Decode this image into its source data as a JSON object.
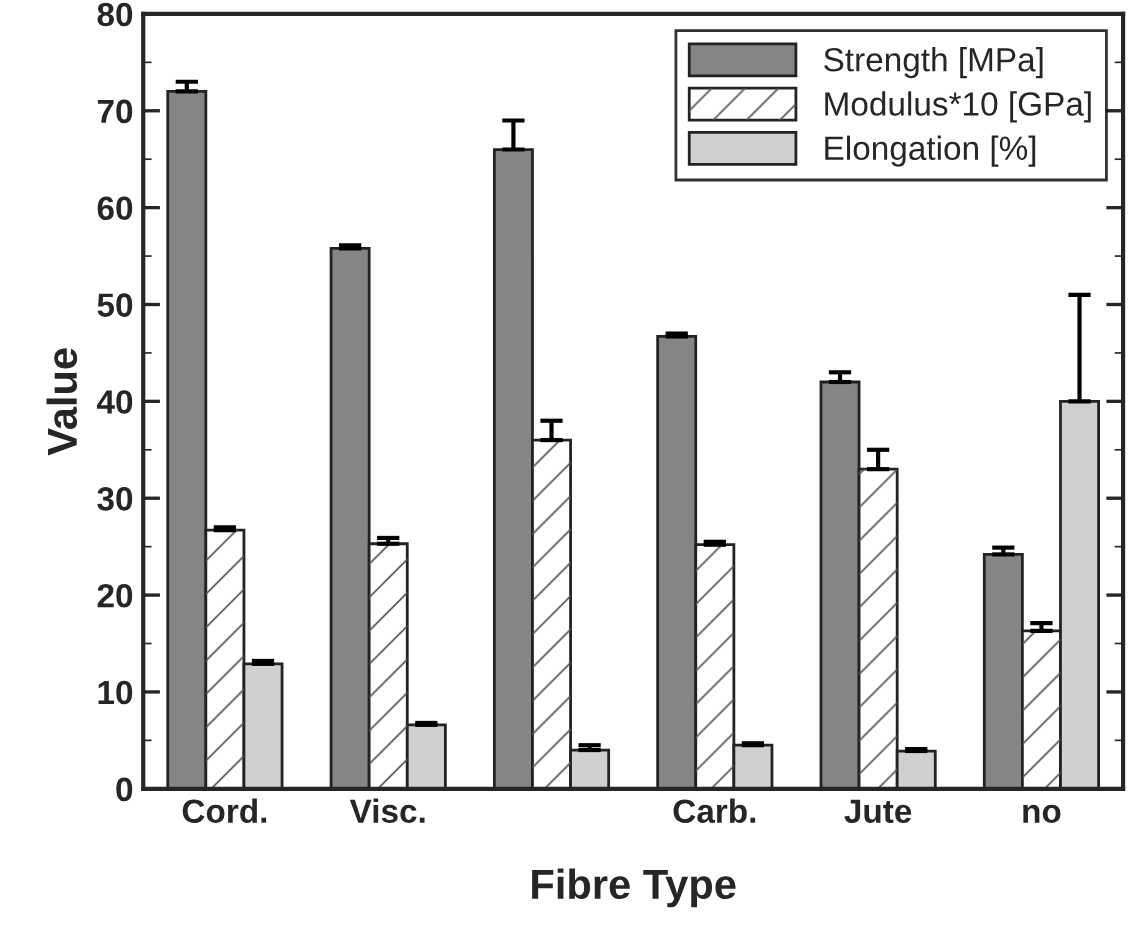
{
  "chart_data": {
    "type": "bar",
    "xlabel": "Fibre Type",
    "ylabel": "Value",
    "categories": [
      "Cord.",
      "Visc.",
      null,
      "Carb.",
      "Jute",
      "no"
    ],
    "series": [
      {
        "name": "Strength [MPa]",
        "color": "#858585",
        "values": [
          72,
          55.8,
          66,
          46.7,
          42,
          24.2
        ],
        "errors": [
          [
            72,
            73
          ],
          [
            55.8,
            56.1
          ],
          [
            66,
            69
          ],
          [
            46.7,
            47
          ],
          [
            42,
            43
          ],
          [
            24.2,
            24.9
          ]
        ]
      },
      {
        "name": "Modulus*10 [GPa]",
        "color": "#ffffff",
        "values": [
          26.7,
          25.3,
          36,
          25.2,
          33,
          16.3
        ],
        "errors": [
          [
            26.7,
            27
          ],
          [
            25.3,
            25.9
          ],
          [
            36,
            38
          ],
          [
            25.2,
            25.5
          ],
          [
            33,
            35
          ],
          [
            16.3,
            17.1
          ]
        ]
      },
      {
        "name": "Elongation [%]",
        "color": "#d0d0d0",
        "values": [
          12.9,
          6.6,
          4,
          4.5,
          3.9,
          40
        ],
        "errors": [
          [
            12.9,
            13.2
          ],
          [
            6.6,
            6.8
          ],
          [
            4,
            4.5
          ],
          [
            4.5,
            4.7
          ],
          [
            3.9,
            4.1
          ],
          [
            40,
            51
          ]
        ]
      }
    ],
    "ylim": [
      0,
      80
    ],
    "yticks": [
      0,
      10,
      20,
      30,
      40,
      50,
      60,
      70,
      80
    ],
    "legend": "top right",
    "grid": false
  }
}
